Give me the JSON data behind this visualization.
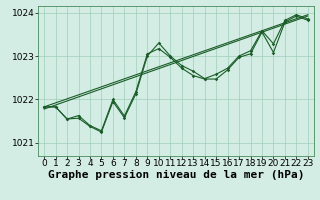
{
  "background_color": "#d4ede4",
  "line_color": "#1a5c28",
  "grid_color": "#9ecfb8",
  "xlabel": "Graphe pression niveau de la mer (hPa)",
  "ylim": [
    1020.7,
    1024.15
  ],
  "xlim": [
    -0.5,
    23.5
  ],
  "yticks": [
    1021,
    1022,
    1023,
    1024
  ],
  "xticks": [
    0,
    1,
    2,
    3,
    4,
    5,
    6,
    7,
    8,
    9,
    10,
    11,
    12,
    13,
    14,
    15,
    16,
    17,
    18,
    19,
    20,
    21,
    22,
    23
  ],
  "series1_x": [
    0,
    1,
    2,
    3,
    4,
    5,
    6,
    7,
    8,
    9,
    10,
    11,
    12,
    13,
    14,
    15,
    16,
    17,
    18,
    19,
    20,
    21,
    22,
    23
  ],
  "series1_y": [
    1021.83,
    1021.83,
    1021.55,
    1021.63,
    1021.4,
    1021.28,
    1022.0,
    1021.62,
    1022.18,
    1023.05,
    1023.17,
    1022.97,
    1022.72,
    1022.55,
    1022.47,
    1022.47,
    1022.68,
    1022.97,
    1023.05,
    1023.55,
    1023.08,
    1023.78,
    1023.92,
    1023.82
  ],
  "series2_x": [
    0,
    1,
    2,
    3,
    4,
    5,
    6,
    7,
    8,
    9,
    10,
    11,
    12,
    13,
    14,
    15,
    16,
    17,
    18,
    19,
    20,
    21,
    22,
    23
  ],
  "series2_y": [
    1021.83,
    1021.83,
    1021.55,
    1021.57,
    1021.38,
    1021.25,
    1021.95,
    1021.58,
    1022.13,
    1023.0,
    1023.3,
    1023.0,
    1022.78,
    1022.65,
    1022.48,
    1022.58,
    1022.72,
    1023.0,
    1023.12,
    1023.58,
    1023.28,
    1023.82,
    1023.95,
    1023.85
  ],
  "trend_x": [
    0,
    23
  ],
  "trend_y": [
    1021.78,
    1023.92
  ],
  "trend2_x": [
    0,
    23
  ],
  "trend2_y": [
    1021.83,
    1023.95
  ],
  "xlabel_fontsize": 8,
  "tick_fontsize": 6.5,
  "spine_color": "#4a8a5a"
}
